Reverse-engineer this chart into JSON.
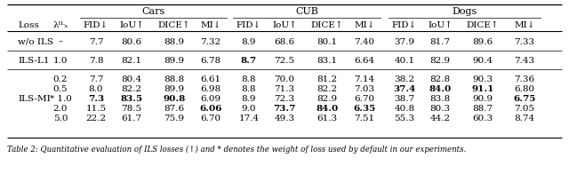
{
  "col_groups": [
    {
      "label": "Cars",
      "cols": [
        2,
        3,
        4,
        5
      ]
    },
    {
      "label": "CUB",
      "cols": [
        6,
        7,
        8,
        9
      ]
    },
    {
      "label": "Dogs",
      "cols": [
        10,
        11,
        12,
        13
      ]
    }
  ],
  "col_headers": [
    "Loss",
    "λᴵᴸₛ",
    "FID↓",
    "IoU↑",
    "DICE↑",
    "MI↓",
    "FID↓",
    "IoU↑",
    "DICE↑",
    "MI↓",
    "FID↓",
    "IoU↑",
    "DICE↑",
    "MI↓"
  ],
  "row_loss_labels": [
    "w/o ILS",
    "ILS-L1",
    "ILS-MI",
    "",
    "",
    "",
    ""
  ],
  "lambda_labels": [
    "–",
    "1.0",
    "0.2",
    "0.5",
    "* 1.0",
    "2.0",
    "5.0"
  ],
  "data_rows": [
    [
      "7.7",
      "80.6",
      "88.9",
      "7.32",
      "8.9",
      "68.6",
      "80.1",
      "7.40",
      "37.9",
      "81.7",
      "89.6",
      "7.33"
    ],
    [
      "7.8",
      "82.1",
      "89.9",
      "6.78",
      "8.7",
      "72.5",
      "83.1",
      "6.64",
      "40.1",
      "82.9",
      "90.4",
      "7.43"
    ],
    [
      "7.7",
      "80.4",
      "88.8",
      "6.61",
      "8.8",
      "70.0",
      "81.2",
      "7.14",
      "38.2",
      "82.8",
      "90.3",
      "7.36"
    ],
    [
      "8.0",
      "82.2",
      "89.9",
      "6.98",
      "8.8",
      "71.3",
      "82.2",
      "7.03",
      "37.4",
      "84.0",
      "91.1",
      "6.80"
    ],
    [
      "7.3",
      "83.5",
      "90.8",
      "6.09",
      "8.9",
      "72.3",
      "82.9",
      "6.70",
      "38.7",
      "83.8",
      "90.9",
      "6.75"
    ],
    [
      "11.5",
      "78.5",
      "87.6",
      "6.06",
      "9.0",
      "73.7",
      "84.0",
      "6.35",
      "40.8",
      "80.3",
      "88.7",
      "7.05"
    ],
    [
      "22.2",
      "61.7",
      "75.9",
      "6.70",
      "17.4",
      "49.3",
      "61.3",
      "7.51",
      "55.3",
      "44.2",
      "60.3",
      "8.74"
    ]
  ],
  "bold_cells": [
    [],
    [
      4
    ],
    [],
    [
      8,
      9,
      10
    ],
    [
      0,
      1,
      2,
      11
    ],
    [
      3,
      5,
      6,
      7
    ],
    []
  ],
  "caption": "Table 2: Quantitative evaluation of ILS losses (↑) and * denotes the weight of loss used by default in our experiments.",
  "bg_color": "#ffffff",
  "text_color": "#000000",
  "font_size": 7.5,
  "header_font_size": 8.0,
  "caption_font_size": 6.2
}
